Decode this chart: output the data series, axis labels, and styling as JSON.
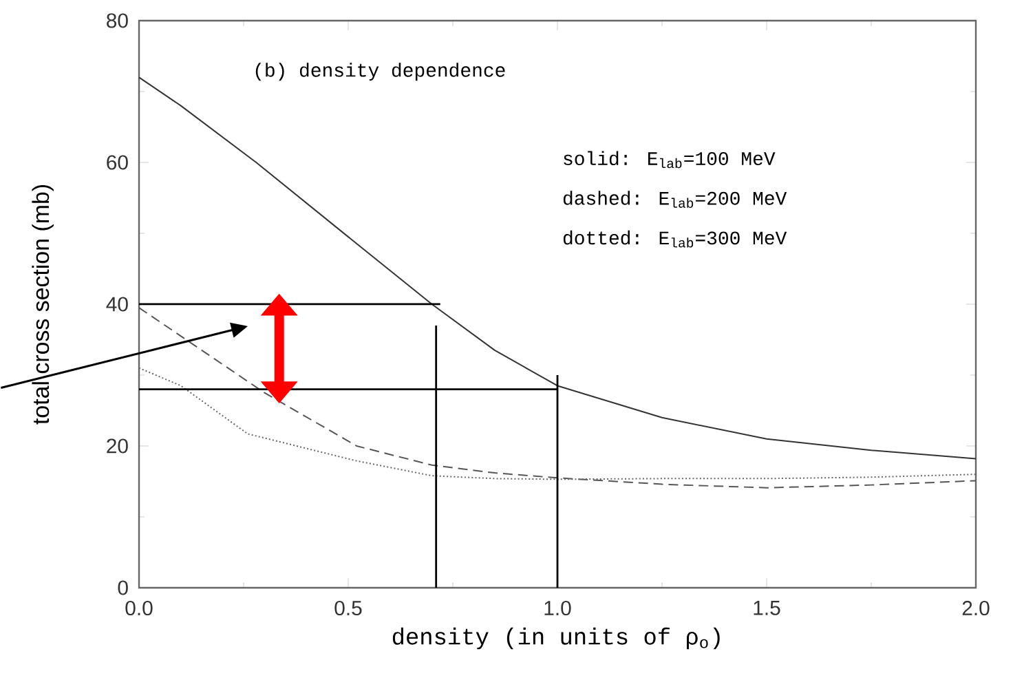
{
  "chart_data": {
    "type": "line",
    "xlabel": "density (in units of ρ$_{o}$)",
    "ylabel": "total cross section (mb)",
    "annotations": [
      "(b) density dependence",
      "solid: E$_{lab}$=100 MeV",
      "dashed: E$_{lab}$=200 MeV",
      "dotted: E$_{lab}$=300 MeV"
    ],
    "xlim": [
      0,
      2
    ],
    "ylim": [
      0,
      80
    ],
    "xticks": [
      {
        "value": 0,
        "label": "0.0"
      },
      {
        "value": 0.5,
        "label": "0.5"
      },
      {
        "value": 1,
        "label": "1.0"
      },
      {
        "value": 1.5,
        "label": "1.5"
      },
      {
        "value": 2,
        "label": "2.0"
      }
    ],
    "yticks": [
      0,
      20,
      40,
      60,
      80
    ],
    "grid": false,
    "marker": "none",
    "series": [
      {
        "color": "#333333",
        "line_style": "solid",
        "x": [
          0,
          0.1,
          0.28,
          0.5,
          0.7,
          0.85,
          1.0,
          1.25,
          1.5,
          1.75,
          2.0
        ],
        "values": [
          72,
          68,
          60,
          49.5,
          40,
          33.5,
          28.5,
          24,
          21,
          19.4,
          18.2
        ]
      },
      {
        "color": "#555555",
        "line_style": "dashed",
        "x": [
          0,
          0.1,
          0.3,
          0.52,
          0.7,
          0.85,
          1.0,
          1.25,
          1.5,
          1.75,
          2.0
        ],
        "values": [
          39.5,
          35.5,
          27.5,
          20,
          17.3,
          16.2,
          15.5,
          14.6,
          14.1,
          14.5,
          15.1
        ]
      },
      {
        "color": "#666666",
        "line_style": "dotted",
        "x": [
          0,
          0.1,
          0.26,
          0.52,
          0.7,
          0.85,
          1.0,
          1.25,
          1.5,
          1.75,
          2.0
        ],
        "values": [
          31,
          28.5,
          21.7,
          17.9,
          15.8,
          15.4,
          15.3,
          15.4,
          15.4,
          15.6,
          16.0
        ]
      },
      {
        "color": "#000000",
        "line_style": "solid",
        "x": [
          0,
          0.72
        ],
        "values": [
          40,
          40
        ]
      },
      {
        "color": "#000000",
        "line_style": "solid",
        "x": [
          0,
          1.0
        ],
        "values": [
          28,
          28
        ]
      },
      {
        "color": "#000000",
        "line_style": "solid",
        "x": [
          0.71,
          0.71
        ],
        "values": [
          0,
          37
        ]
      },
      {
        "color": "#000000",
        "line_style": "solid",
        "x": [
          1.0,
          1.0
        ],
        "values": [
          0,
          30
        ]
      }
    ]
  }
}
